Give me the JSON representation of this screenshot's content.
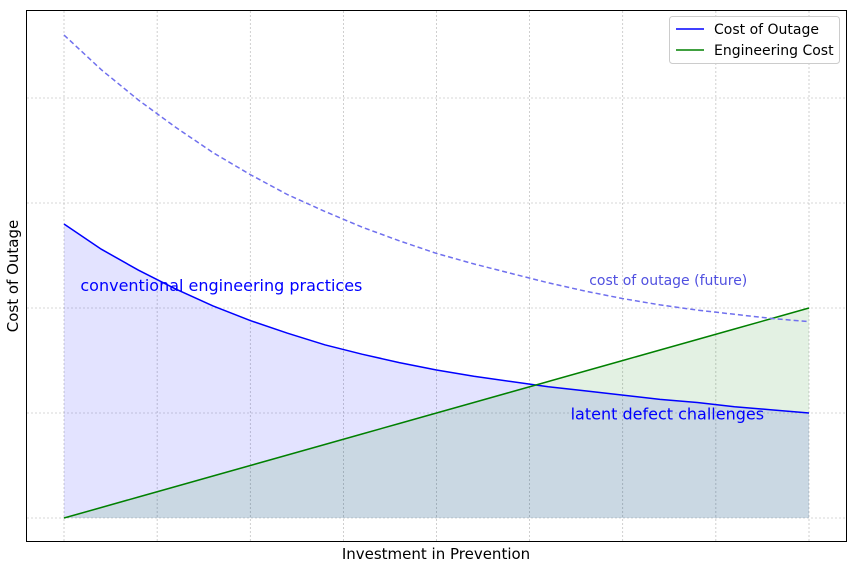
{
  "chart_data": {
    "type": "line",
    "title": "",
    "xlabel": "Investment in Prevention",
    "ylabel": "Cost of Outage",
    "xlim": [
      0,
      10
    ],
    "ylim": [
      -0.22,
      4.8
    ],
    "grid": true,
    "legend_position": "top-right",
    "x": [
      0,
      0.5,
      1,
      1.5,
      2,
      2.5,
      3,
      3.5,
      4,
      4.5,
      5,
      5.5,
      6,
      6.5,
      7,
      7.5,
      8,
      8.5,
      9,
      9.5,
      10
    ],
    "series": [
      {
        "name": "Cost of Outage",
        "color": "#0000ff",
        "style": "solid",
        "in_legend": true,
        "values": [
          2.8,
          2.56,
          2.36,
          2.18,
          2.02,
          1.88,
          1.76,
          1.65,
          1.56,
          1.48,
          1.41,
          1.35,
          1.3,
          1.25,
          1.21,
          1.17,
          1.13,
          1.1,
          1.06,
          1.03,
          1.0
        ]
      },
      {
        "name": "Engineering Cost",
        "color": "#008000",
        "style": "solid",
        "in_legend": true,
        "values": [
          0,
          0.1,
          0.2,
          0.3,
          0.4,
          0.5,
          0.6,
          0.7,
          0.8,
          0.9,
          1.0,
          1.1,
          1.2,
          1.3,
          1.4,
          1.5,
          1.6,
          1.7,
          1.8,
          1.9,
          2.0
        ]
      },
      {
        "color": "#7070ee",
        "style": "dashed",
        "in_legend": false,
        "values": [
          4.6,
          4.27,
          3.98,
          3.72,
          3.48,
          3.27,
          3.08,
          2.92,
          2.77,
          2.64,
          2.52,
          2.42,
          2.33,
          2.24,
          2.16,
          2.09,
          2.03,
          1.98,
          1.94,
          1.9,
          1.87
        ]
      }
    ],
    "annotations": [
      {
        "text": "conventional engineering practices",
        "x": 0.22,
        "y": 2.16,
        "color": "#0000ff"
      },
      {
        "text": "latent defect challenges",
        "x": 6.8,
        "y": 0.94,
        "color": "#0000ff"
      },
      {
        "text": "cost of outage (future)",
        "x": 7.05,
        "y": 2.22,
        "color": "#5050e0"
      }
    ],
    "fills": [
      {
        "between": "Cost of Outage",
        "color": "#0000ff",
        "opacity": 0.11
      },
      {
        "between": "Engineering Cost",
        "color": "#008000",
        "opacity": 0.11
      }
    ]
  }
}
